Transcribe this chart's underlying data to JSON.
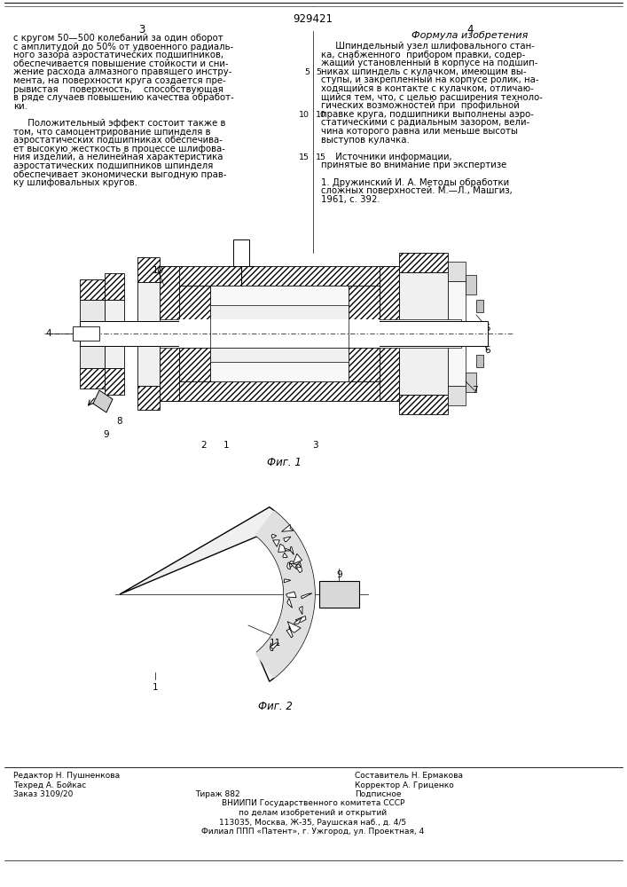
{
  "patent_number": "929421",
  "page_left": "3",
  "page_right": "4",
  "title_formula": "Формула изобретения",
  "col_left_texts": [
    "с кругом 50—500 колебаний за один оборот",
    "с амплитудой до 50% от удвоенного радиаль-",
    "ного зазора аэростатических подшипников,",
    "обеспечивается повышение стойкости и сни-",
    "жение расхода алмазного правящего инстру-",
    "мента, на поверхности круга создается пре-",
    "рывистая    поверхность,    способствующая",
    "в ряде случаев повышению качества обработ-",
    "ки.",
    "",
    "     Положительный эффект состоит также в",
    "том, что самоцентрирование шпинделя в",
    "аэростатических подшипниках обеспечива-",
    "ет высокую жесткость в процессе шлифова-",
    "ния изделий, а нелинейная характеристика",
    "аэростатических подшипников шпинделя",
    "обеспечивает экономически выгодную прав-",
    "ку шлифовальных кругов."
  ],
  "col_right_title": "Формула изобретения",
  "col_right_texts": [
    "     Шпиндельный узел шлифовального стан-",
    "ка, снабженного  прибором правки, содер-",
    "жащий установленный в корпусе на подшип-",
    "никах шпиндель с кулачком, имеющим вы-",
    "ступы, и закрепленный на корпусе ролик, на-",
    "ходящийся в контакте с кулачком, отличаю-",
    "щийся тем, что, с целью расширения техноло-",
    "гических возможностей при  профильной",
    "правке круга, подшипники выполнены аэро-",
    "статическими с радиальным зазором, вели-",
    "чина которого равна или меньше высоты",
    "выступов кулачка.",
    "",
    "     Источники информации,",
    "принятые во внимание при экспертизе",
    "",
    "1. Дружинский И. А. Методы обработки",
    "сложных поверхностей. М.—Л., Машгиз,",
    "1961, с. 392."
  ],
  "fig1_label": "Фиг. 1",
  "fig2_label": "Фиг. 2",
  "footer_col1": [
    "Редактор Н. Пушненкова",
    "Техред А. Бойкас",
    "Заказ 3109/20"
  ],
  "footer_col2": [
    "Составитель Н. Ермакова",
    "Корректор А. Гриценко",
    "Подписное"
  ],
  "footer_tirazh": "Тираж 882",
  "footer_center": [
    "ВНИИПИ Государственного комитета СССР",
    "по делам изобретений и открытий",
    "113035, Москва, Ж-35, Раушская наб., д. 4/5",
    "Филиал ППП «Патент», г. Ужгород, ул. Проектная, 4"
  ],
  "bg_color": "#ffffff"
}
